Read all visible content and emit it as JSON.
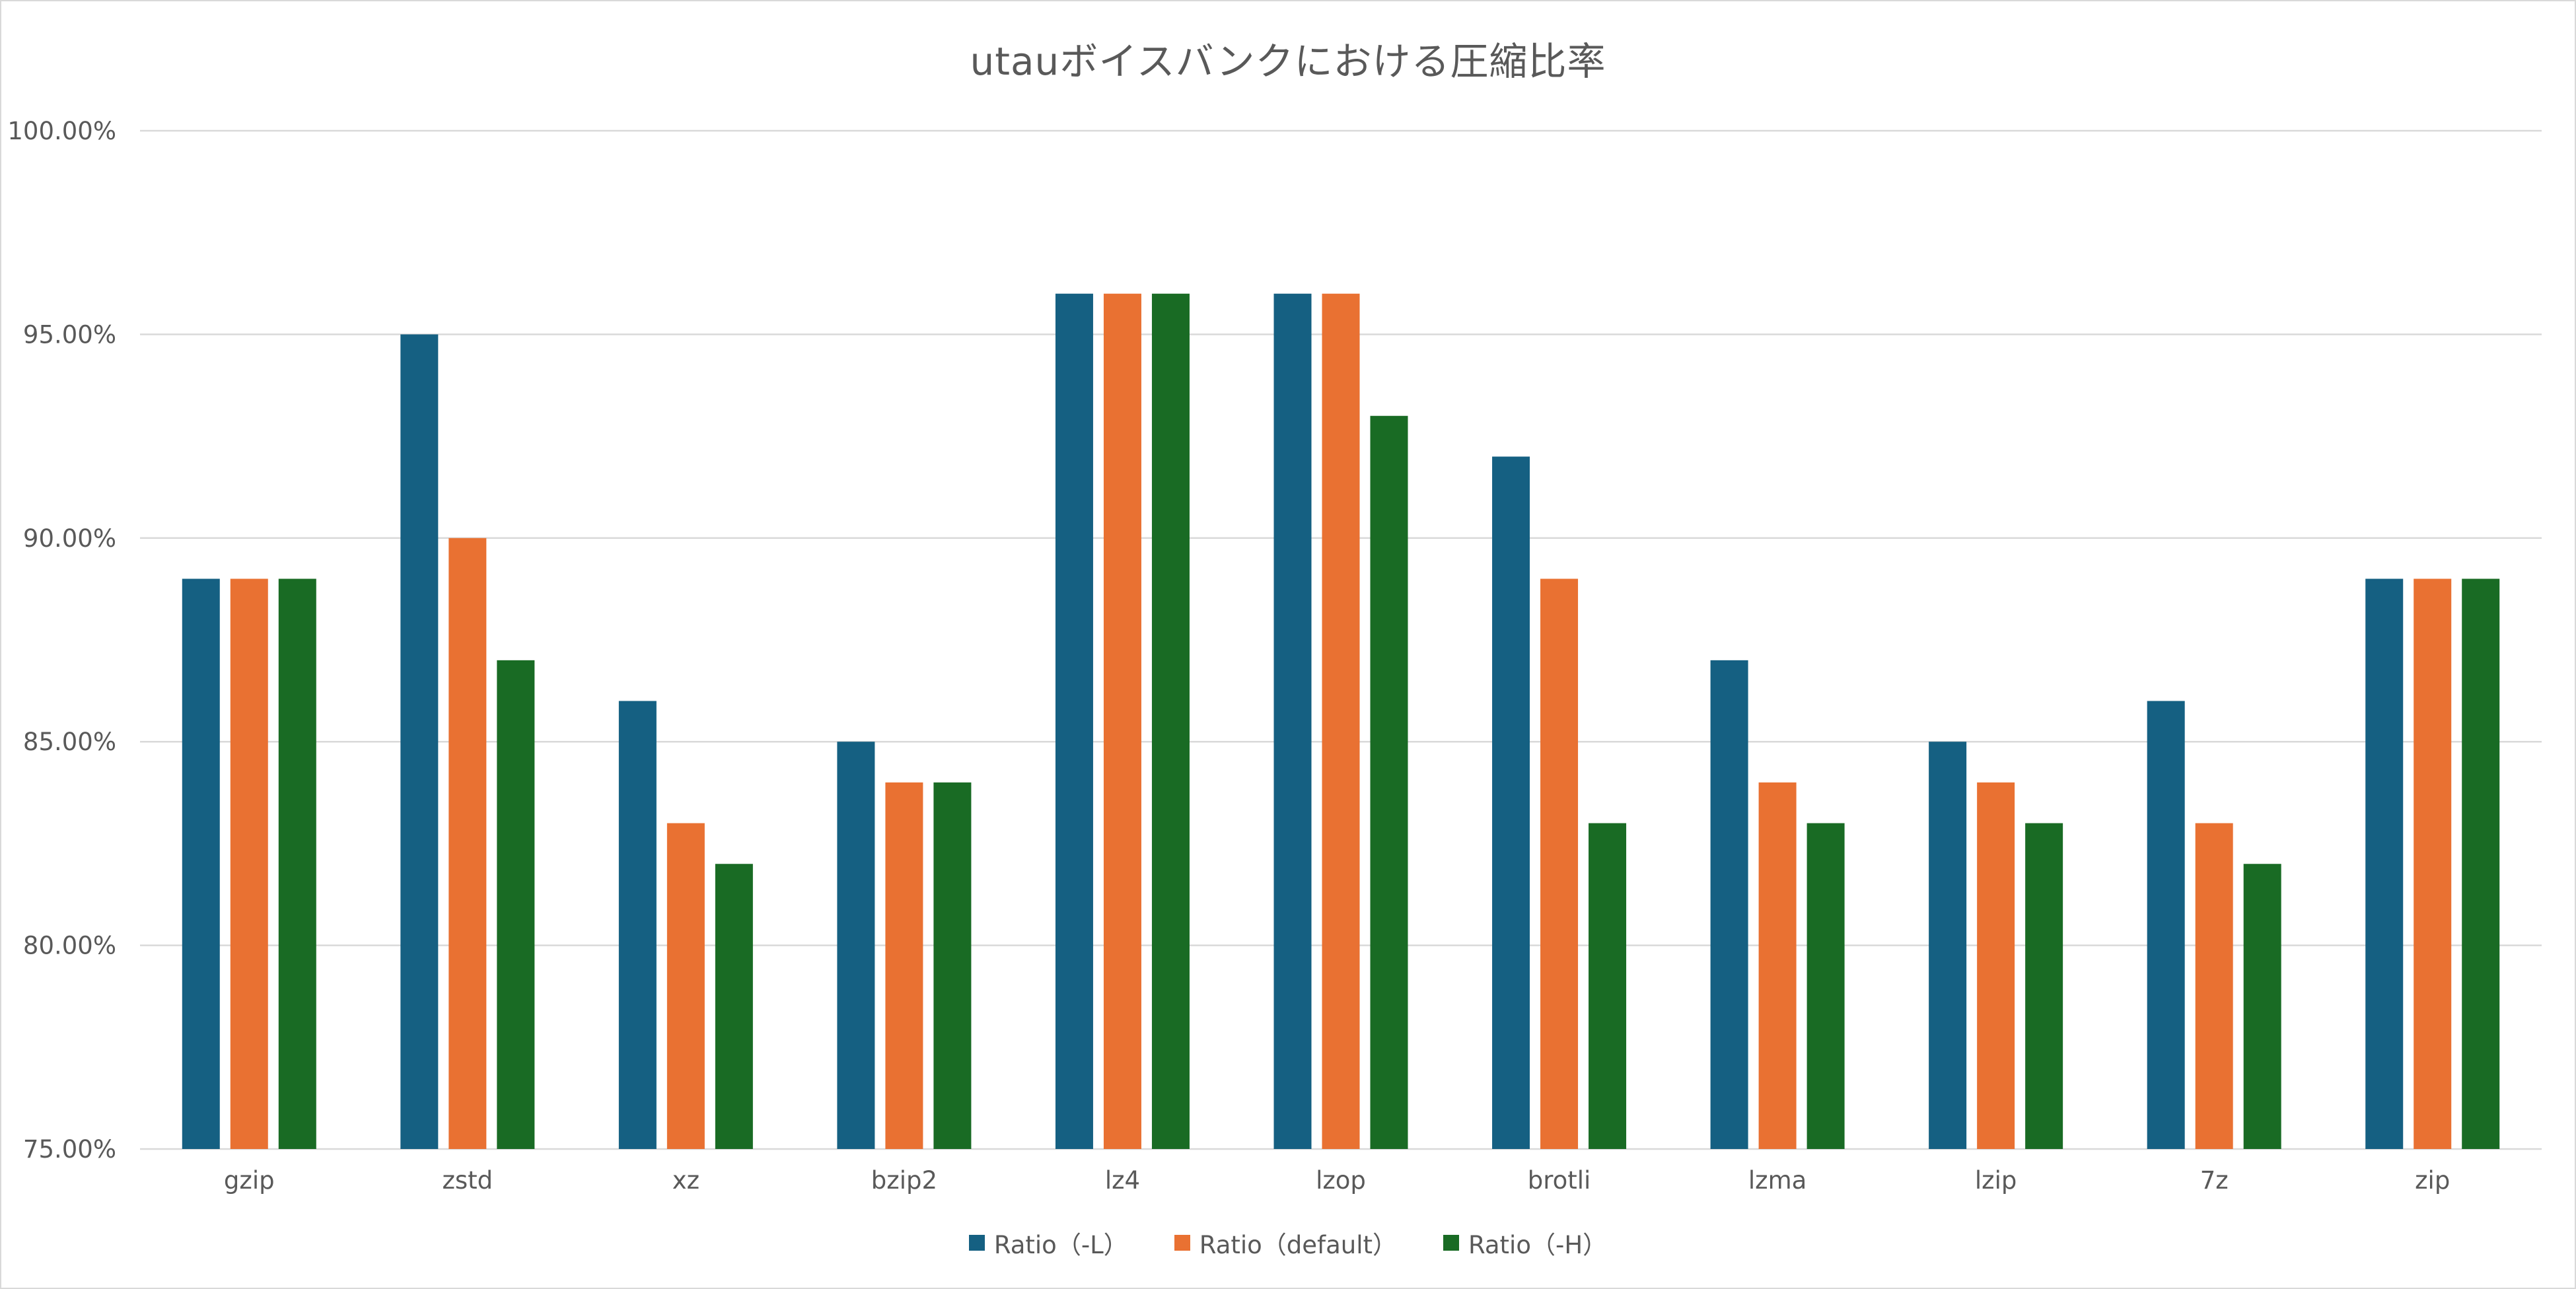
{
  "chart_data": {
    "type": "bar",
    "title": "utauボイスバンクにおける圧縮比率",
    "xlabel": "",
    "ylabel": "",
    "categories": [
      "gzip",
      "zstd",
      "xz",
      "bzip2",
      "lz4",
      "lzop",
      "brotli",
      "lzma",
      "lzip",
      "7z",
      "zip"
    ],
    "series": [
      {
        "name": "Ratio（-L）",
        "color": "#156082",
        "values": [
          0.89,
          0.95,
          0.86,
          0.85,
          0.96,
          0.96,
          0.92,
          0.87,
          0.85,
          0.86,
          0.89
        ]
      },
      {
        "name": "Ratio（default）",
        "color": "#E97132",
        "values": [
          0.89,
          0.9,
          0.83,
          0.84,
          0.96,
          0.96,
          0.89,
          0.84,
          0.84,
          0.83,
          0.89
        ]
      },
      {
        "name": "Ratio（-H）",
        "color": "#196B24",
        "values": [
          0.89,
          0.87,
          0.82,
          0.84,
          0.96,
          0.93,
          0.83,
          0.83,
          0.83,
          0.82,
          0.89
        ]
      }
    ],
    "ylim": [
      0.75,
      1.0
    ],
    "yticks": [
      "75.00%",
      "80.00%",
      "85.00%",
      "90.00%",
      "95.00%",
      "100.00%"
    ],
    "ytick_values": [
      0.75,
      0.8,
      0.85,
      0.9,
      0.95,
      1.0
    ],
    "grid": true,
    "legend_position": "bottom"
  }
}
